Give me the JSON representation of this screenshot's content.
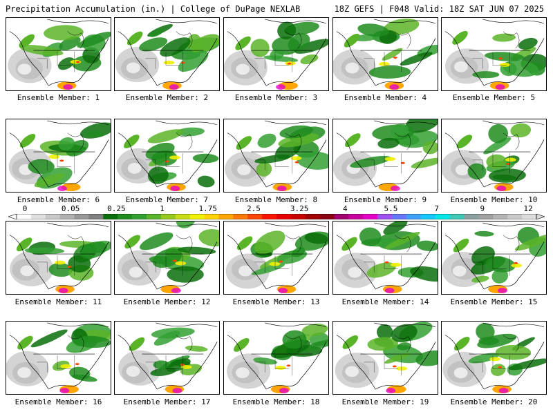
{
  "header": {
    "title_left": "Precipitation Accumulation (in.) | College of DuPage NEXLAB",
    "title_right": "18Z GEFS | F048 Valid: 18Z SAT JUN 07 2025"
  },
  "panels": [
    {
      "label": "Ensemble Member: 1"
    },
    {
      "label": "Ensemble Member: 2"
    },
    {
      "label": "Ensemble Member: 3"
    },
    {
      "label": "Ensemble Member: 4"
    },
    {
      "label": "Ensemble Member: 5"
    },
    {
      "label": "Ensemble Member: 6"
    },
    {
      "label": "Ensemble Member: 7"
    },
    {
      "label": "Ensemble Member: 8"
    },
    {
      "label": "Ensemble Member: 9"
    },
    {
      "label": "Ensemble Member: 10"
    },
    {
      "label": "Ensemble Member: 11"
    },
    {
      "label": "Ensemble Member: 12"
    },
    {
      "label": "Ensemble Member: 13"
    },
    {
      "label": "Ensemble Member: 14"
    },
    {
      "label": "Ensemble Member: 15"
    },
    {
      "label": "Ensemble Member: 16"
    },
    {
      "label": "Ensemble Member: 17"
    },
    {
      "label": "Ensemble Member: 18"
    },
    {
      "label": "Ensemble Member: 19"
    },
    {
      "label": "Ensemble Member: 20"
    }
  ],
  "colorbar": {
    "tick_labels": [
      "0",
      "0.05",
      "0.25",
      "1",
      "1.75",
      "2.5",
      "3.25",
      "4",
      "5.5",
      "7",
      "9",
      "12"
    ],
    "colors": [
      "#ffffff",
      "#e0e0e0",
      "#c8c8c8",
      "#b0b0b0",
      "#989898",
      "#808080",
      "#0a6e0a",
      "#1e8c1e",
      "#32a032",
      "#5ab428",
      "#96c81e",
      "#c8dc14",
      "#f0f000",
      "#ffd200",
      "#ffa500",
      "#ff7800",
      "#ff4600",
      "#ff1400",
      "#e60000",
      "#c80000",
      "#a00000",
      "#8c0014",
      "#a0006e",
      "#c800a0",
      "#e600c8",
      "#a050f0",
      "#6478ff",
      "#3ca0ff",
      "#14c8ff",
      "#00e6e6",
      "#3cc8b4",
      "#8ca0a0",
      "#a0a0a0",
      "#b4b4b4",
      "#c8c8c8",
      "#dcdcdc"
    ]
  }
}
